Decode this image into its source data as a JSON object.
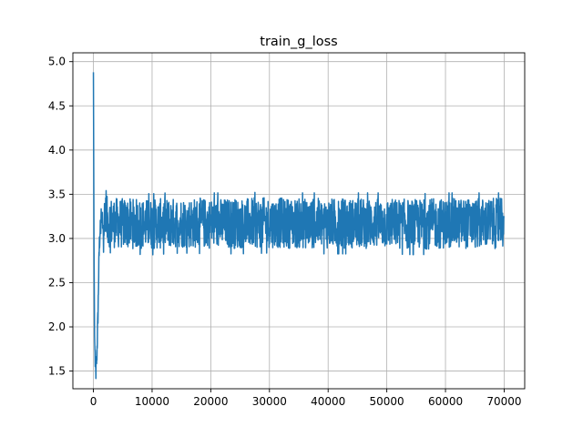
{
  "chart_data": {
    "type": "line",
    "title": "train_g_loss",
    "xlabel": "",
    "ylabel": "",
    "xlim": [
      -3500,
      73500
    ],
    "ylim": [
      1.3,
      5.1
    ],
    "xticks": [
      0,
      10000,
      20000,
      30000,
      40000,
      50000,
      60000,
      70000
    ],
    "xtick_labels": [
      "0",
      "10000",
      "20000",
      "30000",
      "40000",
      "50000",
      "60000",
      "70000"
    ],
    "yticks": [
      1.5,
      2.0,
      2.5,
      3.0,
      3.5,
      4.0,
      4.5,
      5.0
    ],
    "ytick_labels": [
      "1.5",
      "2.0",
      "2.5",
      "3.0",
      "3.5",
      "4.0",
      "4.5",
      "5.0"
    ],
    "grid": true,
    "colors": {
      "line": "#1f77b4",
      "grid": "#b0b0b0",
      "axes": "#000000"
    },
    "series": [
      {
        "x": [
          0,
          100,
          200,
          300,
          400,
          500,
          600,
          700,
          800,
          900,
          1000,
          1100,
          1200,
          1300,
          1500,
          2000,
          3000,
          5000,
          10000,
          15000,
          20000,
          25000,
          30000,
          35000,
          40000,
          45000,
          50000,
          55000,
          60000,
          65000,
          70000
        ],
        "y": [
          4.88,
          2.9,
          1.9,
          1.6,
          1.48,
          1.55,
          1.7,
          1.95,
          2.2,
          2.6,
          2.9,
          3.05,
          3.1,
          3.15,
          3.18,
          3.2,
          3.18,
          3.17,
          3.16,
          3.18,
          3.17,
          3.17,
          3.18,
          3.17,
          3.17,
          3.17,
          3.17,
          3.16,
          3.17,
          3.17,
          3.17
        ],
        "band_low": 2.85,
        "band_high": 3.45
      }
    ]
  }
}
